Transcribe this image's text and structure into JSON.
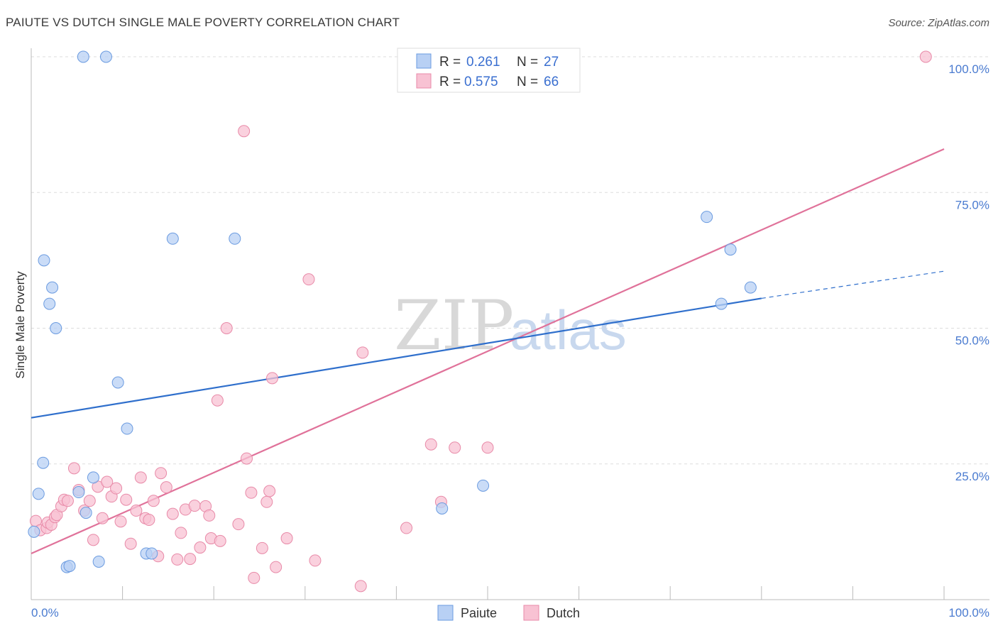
{
  "title": "PAIUTE VS DUTCH SINGLE MALE POVERTY CORRELATION CHART",
  "source": "Source: ZipAtlas.com",
  "watermark": {
    "zip": "ZIP",
    "atlas": "atlas"
  },
  "legend_top": {
    "rows": [
      {
        "r_label": "R =",
        "r_value": "0.261",
        "n_label": "N =",
        "n_value": "27"
      },
      {
        "r_label": "R =",
        "r_value": "0.575",
        "n_label": "N =",
        "n_value": "66"
      }
    ]
  },
  "legend_bottom": [
    "Paiute",
    "Dutch"
  ],
  "colors": {
    "paiute_fill": "#b8d0f4",
    "paiute_stroke": "#6b9be0",
    "paiute_line": "#2f6fcc",
    "dutch_fill": "#f8c2d3",
    "dutch_stroke": "#e88aa8",
    "dutch_line": "#e0729a",
    "tick": "#4a7bd0",
    "grid": "#dddddd"
  },
  "chart_data": {
    "type": "scatter",
    "title": "PAIUTE VS DUTCH SINGLE MALE POVERTY CORRELATION CHART",
    "xlabel": "",
    "ylabel": "Single Male Poverty",
    "xlim": [
      0,
      100
    ],
    "ylim": [
      0,
      100
    ],
    "x_tick_labels": [
      "0.0%",
      "100.0%"
    ],
    "y_tick_labels": [
      "25.0%",
      "50.0%",
      "75.0%",
      "100.0%"
    ],
    "y_ticks": [
      25,
      50,
      75,
      100
    ],
    "grid": true,
    "legend_position": "top-center",
    "series": [
      {
        "name": "Paiute",
        "r": 0.261,
        "n": 27,
        "trend": {
          "x0": 0,
          "y0": 33.5,
          "x1": 80,
          "y1": 55.5,
          "dash_x1": 100,
          "dash_y1": 60.5
        },
        "points": [
          [
            0.3,
            12.5
          ],
          [
            0.8,
            19.5
          ],
          [
            1.3,
            25.2
          ],
          [
            1.4,
            62.5
          ],
          [
            2.0,
            54.5
          ],
          [
            2.3,
            57.5
          ],
          [
            2.7,
            50.0
          ],
          [
            3.9,
            6.0
          ],
          [
            4.2,
            6.2
          ],
          [
            5.2,
            19.8
          ],
          [
            5.7,
            100
          ],
          [
            6.0,
            16.0
          ],
          [
            6.8,
            22.5
          ],
          [
            7.4,
            7.0
          ],
          [
            8.2,
            100
          ],
          [
            9.5,
            40.0
          ],
          [
            10.5,
            31.5
          ],
          [
            12.6,
            8.5
          ],
          [
            13.2,
            8.5
          ],
          [
            15.5,
            66.5
          ],
          [
            22.3,
            66.5
          ],
          [
            45.0,
            16.8
          ],
          [
            49.5,
            21.0
          ],
          [
            74.0,
            70.5
          ],
          [
            75.6,
            54.5
          ],
          [
            76.6,
            64.5
          ],
          [
            78.8,
            57.5
          ]
        ]
      },
      {
        "name": "Dutch",
        "r": 0.575,
        "n": 66,
        "trend": {
          "x0": 0,
          "y0": 8.5,
          "x1": 100,
          "y1": 83.0
        },
        "points": [
          [
            0.5,
            14.5
          ],
          [
            1.0,
            12.8
          ],
          [
            1.7,
            13.2
          ],
          [
            1.8,
            14.2
          ],
          [
            2.2,
            13.8
          ],
          [
            2.6,
            15.2
          ],
          [
            2.8,
            15.6
          ],
          [
            3.3,
            17.2
          ],
          [
            3.6,
            18.4
          ],
          [
            4.0,
            18.2
          ],
          [
            4.7,
            24.2
          ],
          [
            5.2,
            20.2
          ],
          [
            5.8,
            16.4
          ],
          [
            6.4,
            18.2
          ],
          [
            6.8,
            11.0
          ],
          [
            7.3,
            20.8
          ],
          [
            7.8,
            15.0
          ],
          [
            8.3,
            21.7
          ],
          [
            8.8,
            19.0
          ],
          [
            9.3,
            20.5
          ],
          [
            9.8,
            14.4
          ],
          [
            10.4,
            18.4
          ],
          [
            10.9,
            10.3
          ],
          [
            11.5,
            16.4
          ],
          [
            12.0,
            22.5
          ],
          [
            12.5,
            15.0
          ],
          [
            12.9,
            14.7
          ],
          [
            13.4,
            18.2
          ],
          [
            13.9,
            8.0
          ],
          [
            14.2,
            23.3
          ],
          [
            14.8,
            20.7
          ],
          [
            15.5,
            15.8
          ],
          [
            16.0,
            7.4
          ],
          [
            16.4,
            12.3
          ],
          [
            16.9,
            16.6
          ],
          [
            17.4,
            7.5
          ],
          [
            17.9,
            17.3
          ],
          [
            18.5,
            9.6
          ],
          [
            19.1,
            17.2
          ],
          [
            19.5,
            15.5
          ],
          [
            19.7,
            11.3
          ],
          [
            20.7,
            10.8
          ],
          [
            20.4,
            36.7
          ],
          [
            21.4,
            50.0
          ],
          [
            22.7,
            13.9
          ],
          [
            23.3,
            86.3
          ],
          [
            23.6,
            26.0
          ],
          [
            24.1,
            19.7
          ],
          [
            24.4,
            4.0
          ],
          [
            25.3,
            9.5
          ],
          [
            25.8,
            18.0
          ],
          [
            26.1,
            20.0
          ],
          [
            26.4,
            40.8
          ],
          [
            26.8,
            6.0
          ],
          [
            28.0,
            11.3
          ],
          [
            30.4,
            59.0
          ],
          [
            31.1,
            7.2
          ],
          [
            36.1,
            2.5
          ],
          [
            36.3,
            45.5
          ],
          [
            41.1,
            13.2
          ],
          [
            42.3,
            100
          ],
          [
            43.8,
            28.6
          ],
          [
            44.9,
            18.0
          ],
          [
            46.4,
            28.0
          ],
          [
            50.0,
            28.0
          ],
          [
            98.0,
            100
          ]
        ]
      }
    ]
  }
}
